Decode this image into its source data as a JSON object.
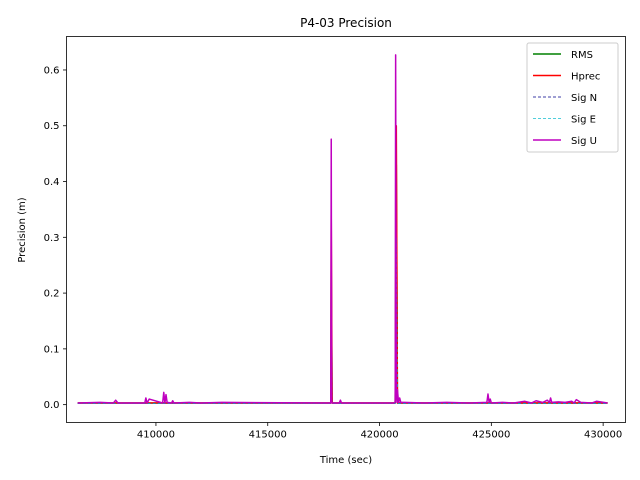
{
  "chart_data": {
    "type": "line",
    "title": "P4-03 Precision",
    "xlabel": "Time (sec)",
    "ylabel": "Precision (m)",
    "xlim": [
      406000,
      431000
    ],
    "ylim": [
      -0.032,
      0.66
    ],
    "xticks": [
      410000,
      415000,
      420000,
      425000,
      430000
    ],
    "xtick_labels": [
      "410000",
      "415000",
      "420000",
      "425000",
      "430000"
    ],
    "yticks": [
      0.0,
      0.1,
      0.2,
      0.3,
      0.4,
      0.5,
      0.6
    ],
    "ytick_labels": [
      "0.0",
      "0.1",
      "0.2",
      "0.3",
      "0.4",
      "0.5",
      "0.6"
    ],
    "legend_position": "top-right",
    "grid": false,
    "series": [
      {
        "name": "RMS",
        "color": "#008000",
        "style": "solid",
        "x": [
          406500,
          412950,
          417820,
          417840,
          417880,
          418300,
          420700,
          420750,
          420800,
          430200
        ],
        "y": [
          0.003,
          0.003,
          0.003,
          0.24,
          0.003,
          0.003,
          0.003,
          0.43,
          0.003,
          0.003
        ]
      },
      {
        "name": "Hprec",
        "color": "#ff0000",
        "style": "solid",
        "x": [
          406500,
          412950,
          417820,
          417840,
          417880,
          418300,
          420700,
          420750,
          420800,
          430200
        ],
        "y": [
          0.003,
          0.003,
          0.003,
          0.34,
          0.003,
          0.003,
          0.003,
          0.5,
          0.003,
          0.003
        ]
      },
      {
        "name": "Sig N",
        "color": "#00008b",
        "style": "dashed",
        "x": [
          406500,
          412950,
          417820,
          417840,
          417880,
          418300,
          420700,
          420750,
          420800,
          430200
        ],
        "y": [
          0.002,
          0.002,
          0.002,
          0.2,
          0.002,
          0.002,
          0.002,
          0.3,
          0.002,
          0.002
        ]
      },
      {
        "name": "Sig E",
        "color": "#17becf",
        "style": "dashed",
        "x": [
          406500,
          412950,
          417820,
          417840,
          417880,
          418300,
          420700,
          420750,
          420800,
          430200
        ],
        "y": [
          0.002,
          0.002,
          0.002,
          0.2,
          0.002,
          0.002,
          0.002,
          0.3,
          0.002,
          0.002
        ]
      },
      {
        "name": "Sig U",
        "color": "#bf00bf",
        "style": "solid",
        "x": [
          406500,
          407500,
          408100,
          408200,
          408300,
          409000,
          409500,
          409550,
          409600,
          409700,
          410300,
          410350,
          410400,
          410450,
          410500,
          410700,
          410750,
          410800,
          411500,
          412000,
          412950,
          417800,
          417820,
          417840,
          417860,
          417880,
          418000,
          418200,
          418250,
          418300,
          420650,
          420700,
          420720,
          420750,
          420780,
          420800,
          420850,
          420900,
          420950,
          421000,
          421100,
          422000,
          423000,
          424000,
          424800,
          424850,
          424900,
          424950,
          425000,
          425500,
          426000,
          426500,
          426800,
          427000,
          427300,
          427500,
          427600,
          427650,
          427700,
          428000,
          428300,
          428600,
          428700,
          428800,
          429000,
          429500,
          429700,
          430200
        ],
        "y": [
          0.003,
          0.004,
          0.003,
          0.008,
          0.003,
          0.003,
          0.003,
          0.012,
          0.003,
          0.01,
          0.003,
          0.022,
          0.003,
          0.018,
          0.004,
          0.003,
          0.007,
          0.003,
          0.004,
          0.003,
          0.004,
          0.003,
          0.004,
          0.476,
          0.004,
          0.003,
          0.003,
          0.003,
          0.008,
          0.003,
          0.003,
          0.005,
          0.627,
          0.02,
          0.004,
          0.027,
          0.004,
          0.012,
          0.004,
          0.004,
          0.004,
          0.003,
          0.004,
          0.003,
          0.004,
          0.019,
          0.004,
          0.01,
          0.003,
          0.004,
          0.003,
          0.006,
          0.003,
          0.007,
          0.004,
          0.008,
          0.004,
          0.012,
          0.004,
          0.005,
          0.004,
          0.006,
          0.003,
          0.009,
          0.004,
          0.003,
          0.006,
          0.003
        ]
      }
    ]
  }
}
